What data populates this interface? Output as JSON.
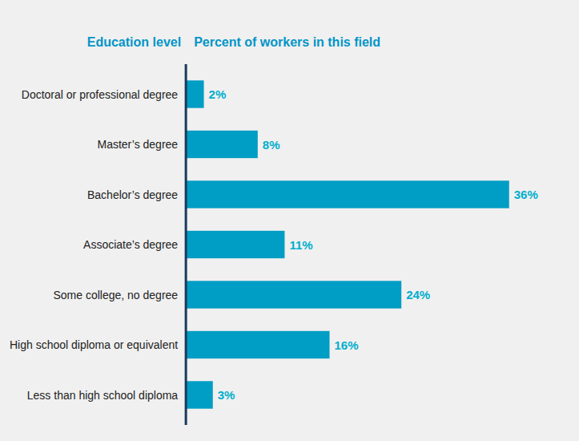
{
  "chart_data": {
    "type": "bar",
    "orientation": "horizontal",
    "ylabel": "Education level",
    "xlabel": "Percent of workers in this field",
    "categories": [
      "Doctoral or professional degree",
      "Master’s degree",
      "Bachelor’s degree",
      "Associate’s degree",
      "Some college, no degree",
      "High school diploma or equivalent",
      "Less than high school diploma"
    ],
    "values": [
      2,
      8,
      36,
      11,
      24,
      16,
      3
    ],
    "value_labels": [
      "2%",
      "8%",
      "36%",
      "11%",
      "24%",
      "16%",
      "3%"
    ],
    "color": "#009DC4",
    "xlim": [
      0,
      42
    ],
    "data_labels": true,
    "grid": false,
    "tick_labels": "y"
  }
}
